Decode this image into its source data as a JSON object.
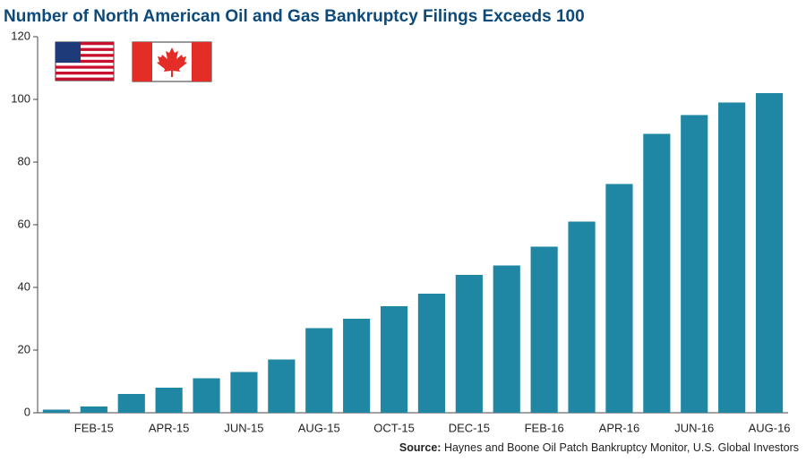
{
  "chart_data": {
    "type": "bar",
    "title": "Number of North American Oil and Gas Bankruptcy Filings Exceeds 100",
    "categories": [
      null,
      "FEB-15",
      null,
      "APR-15",
      null,
      "JUN-15",
      null,
      "AUG-15",
      null,
      "OCT-15",
      null,
      "DEC-15",
      null,
      "FEB-16",
      null,
      "APR-16",
      null,
      "JUN-16",
      null,
      "AUG-16"
    ],
    "values": [
      1,
      2,
      6,
      8,
      11,
      13,
      17,
      27,
      30,
      34,
      38,
      44,
      47,
      53,
      61,
      73,
      89,
      95,
      99,
      102
    ],
    "color": "#1f86a3",
    "ylim": [
      0,
      120
    ],
    "yticks": [
      0,
      20,
      40,
      60,
      80,
      100,
      120
    ],
    "grid": false,
    "source_label": "Source:",
    "source": "Haynes and Boone Oil Patch Bankruptcy Monitor, U.S. Global Investors"
  }
}
